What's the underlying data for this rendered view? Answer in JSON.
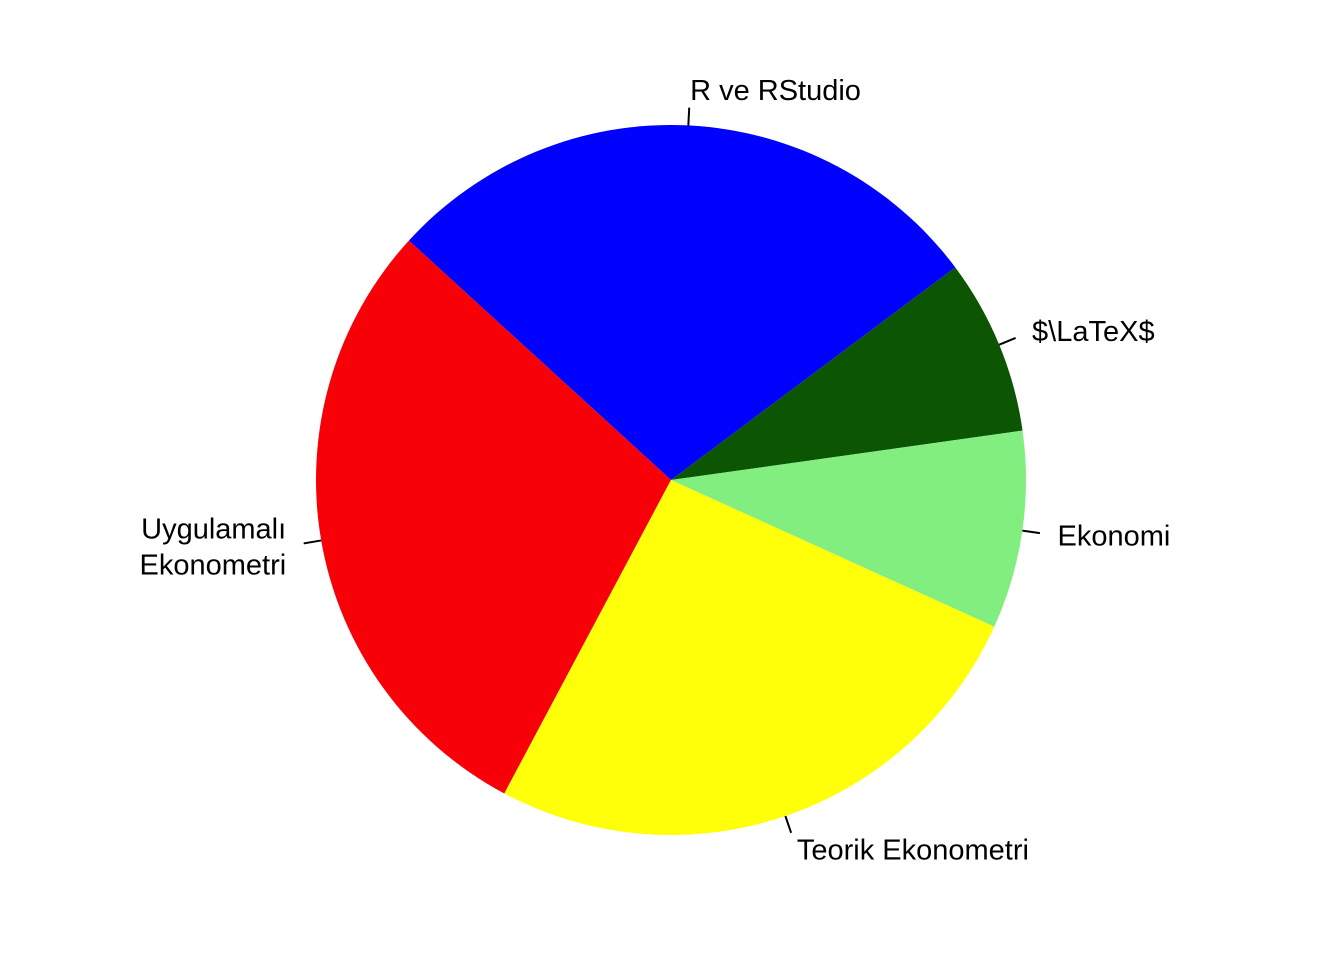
{
  "chart_data": {
    "type": "pie",
    "title": "",
    "slices": [
      {
        "label": "$\\LaTeX$",
        "value": 8,
        "color": "#0B5503"
      },
      {
        "label": "R ve RStudio",
        "value": 28,
        "color": "#0000FF"
      },
      {
        "label": "Uygulamalı\nEkonometri",
        "value": 29,
        "color": "#F80007"
      },
      {
        "label": "Teorik Ekonometri",
        "value": 26,
        "color": "#FFFF0A"
      },
      {
        "label": "Ekonomi",
        "value": 9,
        "color": "#83EE80"
      }
    ],
    "start_angle_deg": 8,
    "direction": "counterclockwise",
    "legend": false
  }
}
